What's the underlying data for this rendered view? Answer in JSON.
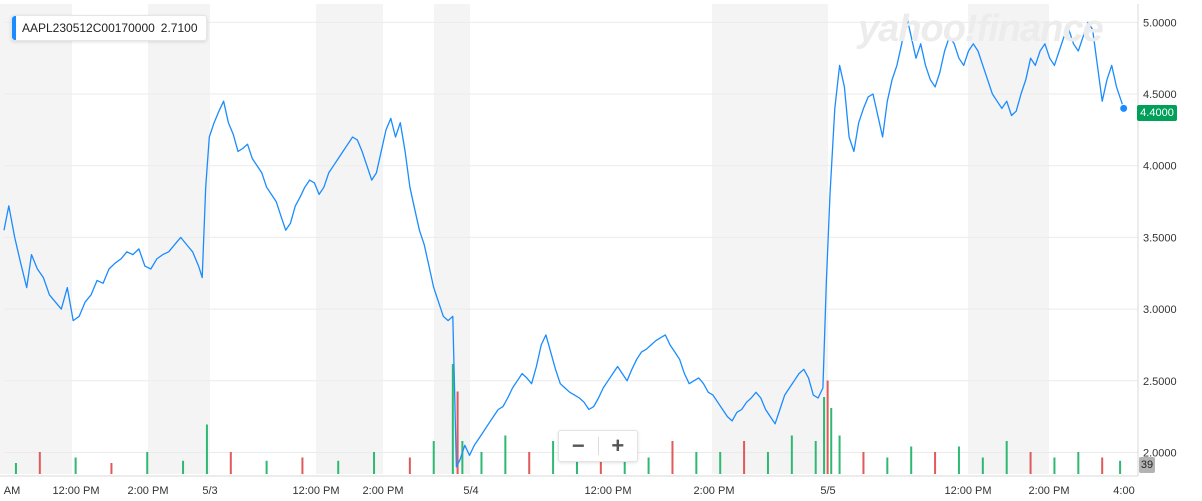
{
  "legend": {
    "symbol": "AAPL230512C00170000",
    "value": "2.7100",
    "color": "#1a8cff"
  },
  "watermark": "yahoo!finance",
  "zoom": {
    "minus_icon": "minus-icon",
    "plus_icon": "plus-icon"
  },
  "last_price_label": "4.4000",
  "volume_label": "39",
  "colors": {
    "line": "#1a8cff",
    "last_price": "#00a05a",
    "volume_up": "#2eb872",
    "volume_down": "#e05a5a",
    "shade": "#f4f4f4",
    "grid": "#ebebeb",
    "axis_text": "#333333"
  },
  "chart_data": {
    "type": "line",
    "title": "",
    "xlabel": "",
    "ylabel": "",
    "ylim": [
      1.85,
      5.1
    ],
    "y_ticks": [
      "5.0000",
      "4.5000",
      "4.0000",
      "3.5000",
      "3.0000",
      "2.5000",
      "2.0000"
    ],
    "x_tick_labels": [
      "AM",
      "12:00 PM",
      "2:00 PM",
      "5/3",
      "12:00 PM",
      "2:00 PM",
      "5/4",
      "12:00 PM",
      "2:00 PM",
      "5/5",
      "12:00 PM",
      "2:00 PM",
      "4:00"
    ],
    "series": [
      {
        "points": [
          [
            0.0,
            3.55
          ],
          [
            0.4,
            3.72
          ],
          [
            0.9,
            3.5
          ],
          [
            1.4,
            3.32
          ],
          [
            1.9,
            3.15
          ],
          [
            2.3,
            3.38
          ],
          [
            2.8,
            3.28
          ],
          [
            3.3,
            3.22
          ],
          [
            3.8,
            3.1
          ],
          [
            4.3,
            3.05
          ],
          [
            4.8,
            3.0
          ],
          [
            5.3,
            3.15
          ],
          [
            5.8,
            2.92
          ],
          [
            6.3,
            2.95
          ],
          [
            6.8,
            3.05
          ],
          [
            7.3,
            3.1
          ],
          [
            7.8,
            3.2
          ],
          [
            8.3,
            3.18
          ],
          [
            8.8,
            3.28
          ],
          [
            9.3,
            3.32
          ],
          [
            9.8,
            3.35
          ],
          [
            10.3,
            3.4
          ],
          [
            10.8,
            3.38
          ],
          [
            11.3,
            3.42
          ],
          [
            11.8,
            3.3
          ],
          [
            12.3,
            3.28
          ],
          [
            12.8,
            3.35
          ],
          [
            13.3,
            3.38
          ],
          [
            13.8,
            3.4
          ],
          [
            14.3,
            3.45
          ],
          [
            14.8,
            3.5
          ],
          [
            15.3,
            3.45
          ],
          [
            15.8,
            3.4
          ],
          [
            16.3,
            3.3
          ],
          [
            16.6,
            3.22
          ],
          [
            16.9,
            3.85
          ],
          [
            17.2,
            4.2
          ],
          [
            17.6,
            4.3
          ],
          [
            18.0,
            4.38
          ],
          [
            18.4,
            4.45
          ],
          [
            18.8,
            4.3
          ],
          [
            19.2,
            4.22
          ],
          [
            19.6,
            4.1
          ],
          [
            20.0,
            4.12
          ],
          [
            20.4,
            4.15
          ],
          [
            20.8,
            4.05
          ],
          [
            21.2,
            4.0
          ],
          [
            21.6,
            3.95
          ],
          [
            22.0,
            3.85
          ],
          [
            22.4,
            3.8
          ],
          [
            22.8,
            3.75
          ],
          [
            23.2,
            3.65
          ],
          [
            23.6,
            3.55
          ],
          [
            24.0,
            3.6
          ],
          [
            24.4,
            3.72
          ],
          [
            24.8,
            3.78
          ],
          [
            25.2,
            3.85
          ],
          [
            25.6,
            3.9
          ],
          [
            26.0,
            3.88
          ],
          [
            26.4,
            3.8
          ],
          [
            26.8,
            3.85
          ],
          [
            27.2,
            3.95
          ],
          [
            27.6,
            4.0
          ],
          [
            28.0,
            4.05
          ],
          [
            28.4,
            4.1
          ],
          [
            28.8,
            4.15
          ],
          [
            29.2,
            4.2
          ],
          [
            29.6,
            4.18
          ],
          [
            30.0,
            4.1
          ],
          [
            30.4,
            4.0
          ],
          [
            30.8,
            3.9
          ],
          [
            31.2,
            3.95
          ],
          [
            31.6,
            4.1
          ],
          [
            32.0,
            4.25
          ],
          [
            32.4,
            4.33
          ],
          [
            32.8,
            4.2
          ],
          [
            33.2,
            4.3
          ],
          [
            33.6,
            4.1
          ],
          [
            34.0,
            3.85
          ],
          [
            34.4,
            3.7
          ],
          [
            34.8,
            3.55
          ],
          [
            35.2,
            3.45
          ],
          [
            35.6,
            3.3
          ],
          [
            36.0,
            3.15
          ],
          [
            36.4,
            3.05
          ],
          [
            36.8,
            2.95
          ],
          [
            37.2,
            2.92
          ],
          [
            37.6,
            2.95
          ],
          [
            37.9,
            1.9
          ],
          [
            38.2,
            1.95
          ],
          [
            38.6,
            2.05
          ],
          [
            39.0,
            1.98
          ],
          [
            39.4,
            2.05
          ],
          [
            39.8,
            2.1
          ],
          [
            40.2,
            2.15
          ],
          [
            40.6,
            2.2
          ],
          [
            41.0,
            2.25
          ],
          [
            41.4,
            2.3
          ],
          [
            41.8,
            2.32
          ],
          [
            42.2,
            2.38
          ],
          [
            42.6,
            2.45
          ],
          [
            43.0,
            2.5
          ],
          [
            43.4,
            2.55
          ],
          [
            43.8,
            2.52
          ],
          [
            44.2,
            2.48
          ],
          [
            44.6,
            2.6
          ],
          [
            45.0,
            2.75
          ],
          [
            45.4,
            2.82
          ],
          [
            45.8,
            2.7
          ],
          [
            46.2,
            2.58
          ],
          [
            46.6,
            2.48
          ],
          [
            47.0,
            2.45
          ],
          [
            47.4,
            2.42
          ],
          [
            47.8,
            2.4
          ],
          [
            48.2,
            2.38
          ],
          [
            48.6,
            2.35
          ],
          [
            49.0,
            2.3
          ],
          [
            49.4,
            2.32
          ],
          [
            49.8,
            2.38
          ],
          [
            50.2,
            2.45
          ],
          [
            50.6,
            2.5
          ],
          [
            51.0,
            2.55
          ],
          [
            51.4,
            2.6
          ],
          [
            51.8,
            2.55
          ],
          [
            52.2,
            2.5
          ],
          [
            52.6,
            2.58
          ],
          [
            53.0,
            2.65
          ],
          [
            53.4,
            2.7
          ],
          [
            53.8,
            2.72
          ],
          [
            54.2,
            2.75
          ],
          [
            54.6,
            2.78
          ],
          [
            55.0,
            2.8
          ],
          [
            55.4,
            2.82
          ],
          [
            55.8,
            2.75
          ],
          [
            56.2,
            2.7
          ],
          [
            56.6,
            2.65
          ],
          [
            57.0,
            2.55
          ],
          [
            57.4,
            2.48
          ],
          [
            57.8,
            2.5
          ],
          [
            58.2,
            2.52
          ],
          [
            58.6,
            2.48
          ],
          [
            59.0,
            2.42
          ],
          [
            59.4,
            2.4
          ],
          [
            59.8,
            2.35
          ],
          [
            60.2,
            2.3
          ],
          [
            60.6,
            2.25
          ],
          [
            61.0,
            2.22
          ],
          [
            61.4,
            2.28
          ],
          [
            61.8,
            2.3
          ],
          [
            62.2,
            2.35
          ],
          [
            62.6,
            2.38
          ],
          [
            63.0,
            2.42
          ],
          [
            63.4,
            2.38
          ],
          [
            63.8,
            2.3
          ],
          [
            64.2,
            2.25
          ],
          [
            64.6,
            2.2
          ],
          [
            65.0,
            2.3
          ],
          [
            65.4,
            2.4
          ],
          [
            65.8,
            2.45
          ],
          [
            66.2,
            2.5
          ],
          [
            66.6,
            2.55
          ],
          [
            67.0,
            2.58
          ],
          [
            67.4,
            2.52
          ],
          [
            67.8,
            2.4
          ],
          [
            68.2,
            2.38
          ],
          [
            68.6,
            2.45
          ],
          [
            68.9,
            3.2
          ],
          [
            69.2,
            3.8
          ],
          [
            69.6,
            4.4
          ],
          [
            70.0,
            4.7
          ],
          [
            70.4,
            4.55
          ],
          [
            70.8,
            4.2
          ],
          [
            71.2,
            4.1
          ],
          [
            71.6,
            4.3
          ],
          [
            72.0,
            4.4
          ],
          [
            72.4,
            4.48
          ],
          [
            72.8,
            4.5
          ],
          [
            73.2,
            4.35
          ],
          [
            73.6,
            4.2
          ],
          [
            74.0,
            4.45
          ],
          [
            74.4,
            4.6
          ],
          [
            74.8,
            4.7
          ],
          [
            75.2,
            4.85
          ],
          [
            75.6,
            5.05
          ],
          [
            76.0,
            4.9
          ],
          [
            76.4,
            4.75
          ],
          [
            76.8,
            4.85
          ],
          [
            77.2,
            4.7
          ],
          [
            77.6,
            4.6
          ],
          [
            78.0,
            4.55
          ],
          [
            78.4,
            4.65
          ],
          [
            78.8,
            4.8
          ],
          [
            79.2,
            4.9
          ],
          [
            79.6,
            4.85
          ],
          [
            80.0,
            4.75
          ],
          [
            80.4,
            4.7
          ],
          [
            80.8,
            4.8
          ],
          [
            81.2,
            4.85
          ],
          [
            81.6,
            4.8
          ],
          [
            82.0,
            4.7
          ],
          [
            82.4,
            4.6
          ],
          [
            82.8,
            4.5
          ],
          [
            83.2,
            4.45
          ],
          [
            83.6,
            4.4
          ],
          [
            84.0,
            4.45
          ],
          [
            84.4,
            4.35
          ],
          [
            84.8,
            4.38
          ],
          [
            85.2,
            4.5
          ],
          [
            85.6,
            4.6
          ],
          [
            86.0,
            4.75
          ],
          [
            86.4,
            4.7
          ],
          [
            86.8,
            4.8
          ],
          [
            87.2,
            4.85
          ],
          [
            87.6,
            4.75
          ],
          [
            88.0,
            4.7
          ],
          [
            88.4,
            4.8
          ],
          [
            88.8,
            4.9
          ],
          [
            89.2,
            4.95
          ],
          [
            89.6,
            4.85
          ],
          [
            90.0,
            4.8
          ],
          [
            90.4,
            4.9
          ],
          [
            90.8,
            5.0
          ],
          [
            91.2,
            4.95
          ],
          [
            91.6,
            4.7
          ],
          [
            92.0,
            4.45
          ],
          [
            92.4,
            4.6
          ],
          [
            92.8,
            4.7
          ],
          [
            93.2,
            4.55
          ],
          [
            93.6,
            4.45
          ],
          [
            93.8,
            4.4
          ]
        ]
      }
    ],
    "volume": [
      [
        1,
        0.1,
        "up"
      ],
      [
        3,
        0.2,
        "down"
      ],
      [
        6,
        0.15,
        "up"
      ],
      [
        9,
        0.1,
        "down"
      ],
      [
        12,
        0.2,
        "up"
      ],
      [
        15,
        0.12,
        "up"
      ],
      [
        17,
        0.45,
        "up"
      ],
      [
        19,
        0.2,
        "down"
      ],
      [
        22,
        0.12,
        "up"
      ],
      [
        25,
        0.15,
        "down"
      ],
      [
        28,
        0.12,
        "up"
      ],
      [
        31,
        0.2,
        "up"
      ],
      [
        34,
        0.15,
        "down"
      ],
      [
        36,
        0.3,
        "up"
      ],
      [
        37.6,
        1.0,
        "up"
      ],
      [
        38.0,
        0.75,
        "down"
      ],
      [
        38.4,
        0.3,
        "up"
      ],
      [
        40,
        0.2,
        "up"
      ],
      [
        42,
        0.35,
        "up"
      ],
      [
        44,
        0.2,
        "down"
      ],
      [
        46,
        0.3,
        "up"
      ],
      [
        48,
        0.15,
        "up"
      ],
      [
        50,
        0.25,
        "down"
      ],
      [
        52,
        0.2,
        "up"
      ],
      [
        54,
        0.15,
        "up"
      ],
      [
        56,
        0.3,
        "down"
      ],
      [
        58,
        0.2,
        "up"
      ],
      [
        60,
        0.2,
        "up"
      ],
      [
        62,
        0.3,
        "down"
      ],
      [
        64,
        0.2,
        "up"
      ],
      [
        66,
        0.35,
        "up"
      ],
      [
        68,
        0.3,
        "up"
      ],
      [
        68.7,
        0.7,
        "up"
      ],
      [
        69.0,
        0.85,
        "down"
      ],
      [
        69.3,
        0.6,
        "up"
      ],
      [
        70,
        0.35,
        "up"
      ],
      [
        72,
        0.2,
        "down"
      ],
      [
        74,
        0.15,
        "up"
      ],
      [
        76,
        0.25,
        "up"
      ],
      [
        78,
        0.2,
        "down"
      ],
      [
        80,
        0.25,
        "up"
      ],
      [
        82,
        0.15,
        "up"
      ],
      [
        84,
        0.3,
        "up"
      ],
      [
        86,
        0.2,
        "down"
      ],
      [
        88,
        0.15,
        "up"
      ],
      [
        90,
        0.2,
        "up"
      ],
      [
        92,
        0.15,
        "down"
      ],
      [
        93.5,
        0.12,
        "up"
      ]
    ],
    "grid": true,
    "legend_position": "top-left"
  }
}
